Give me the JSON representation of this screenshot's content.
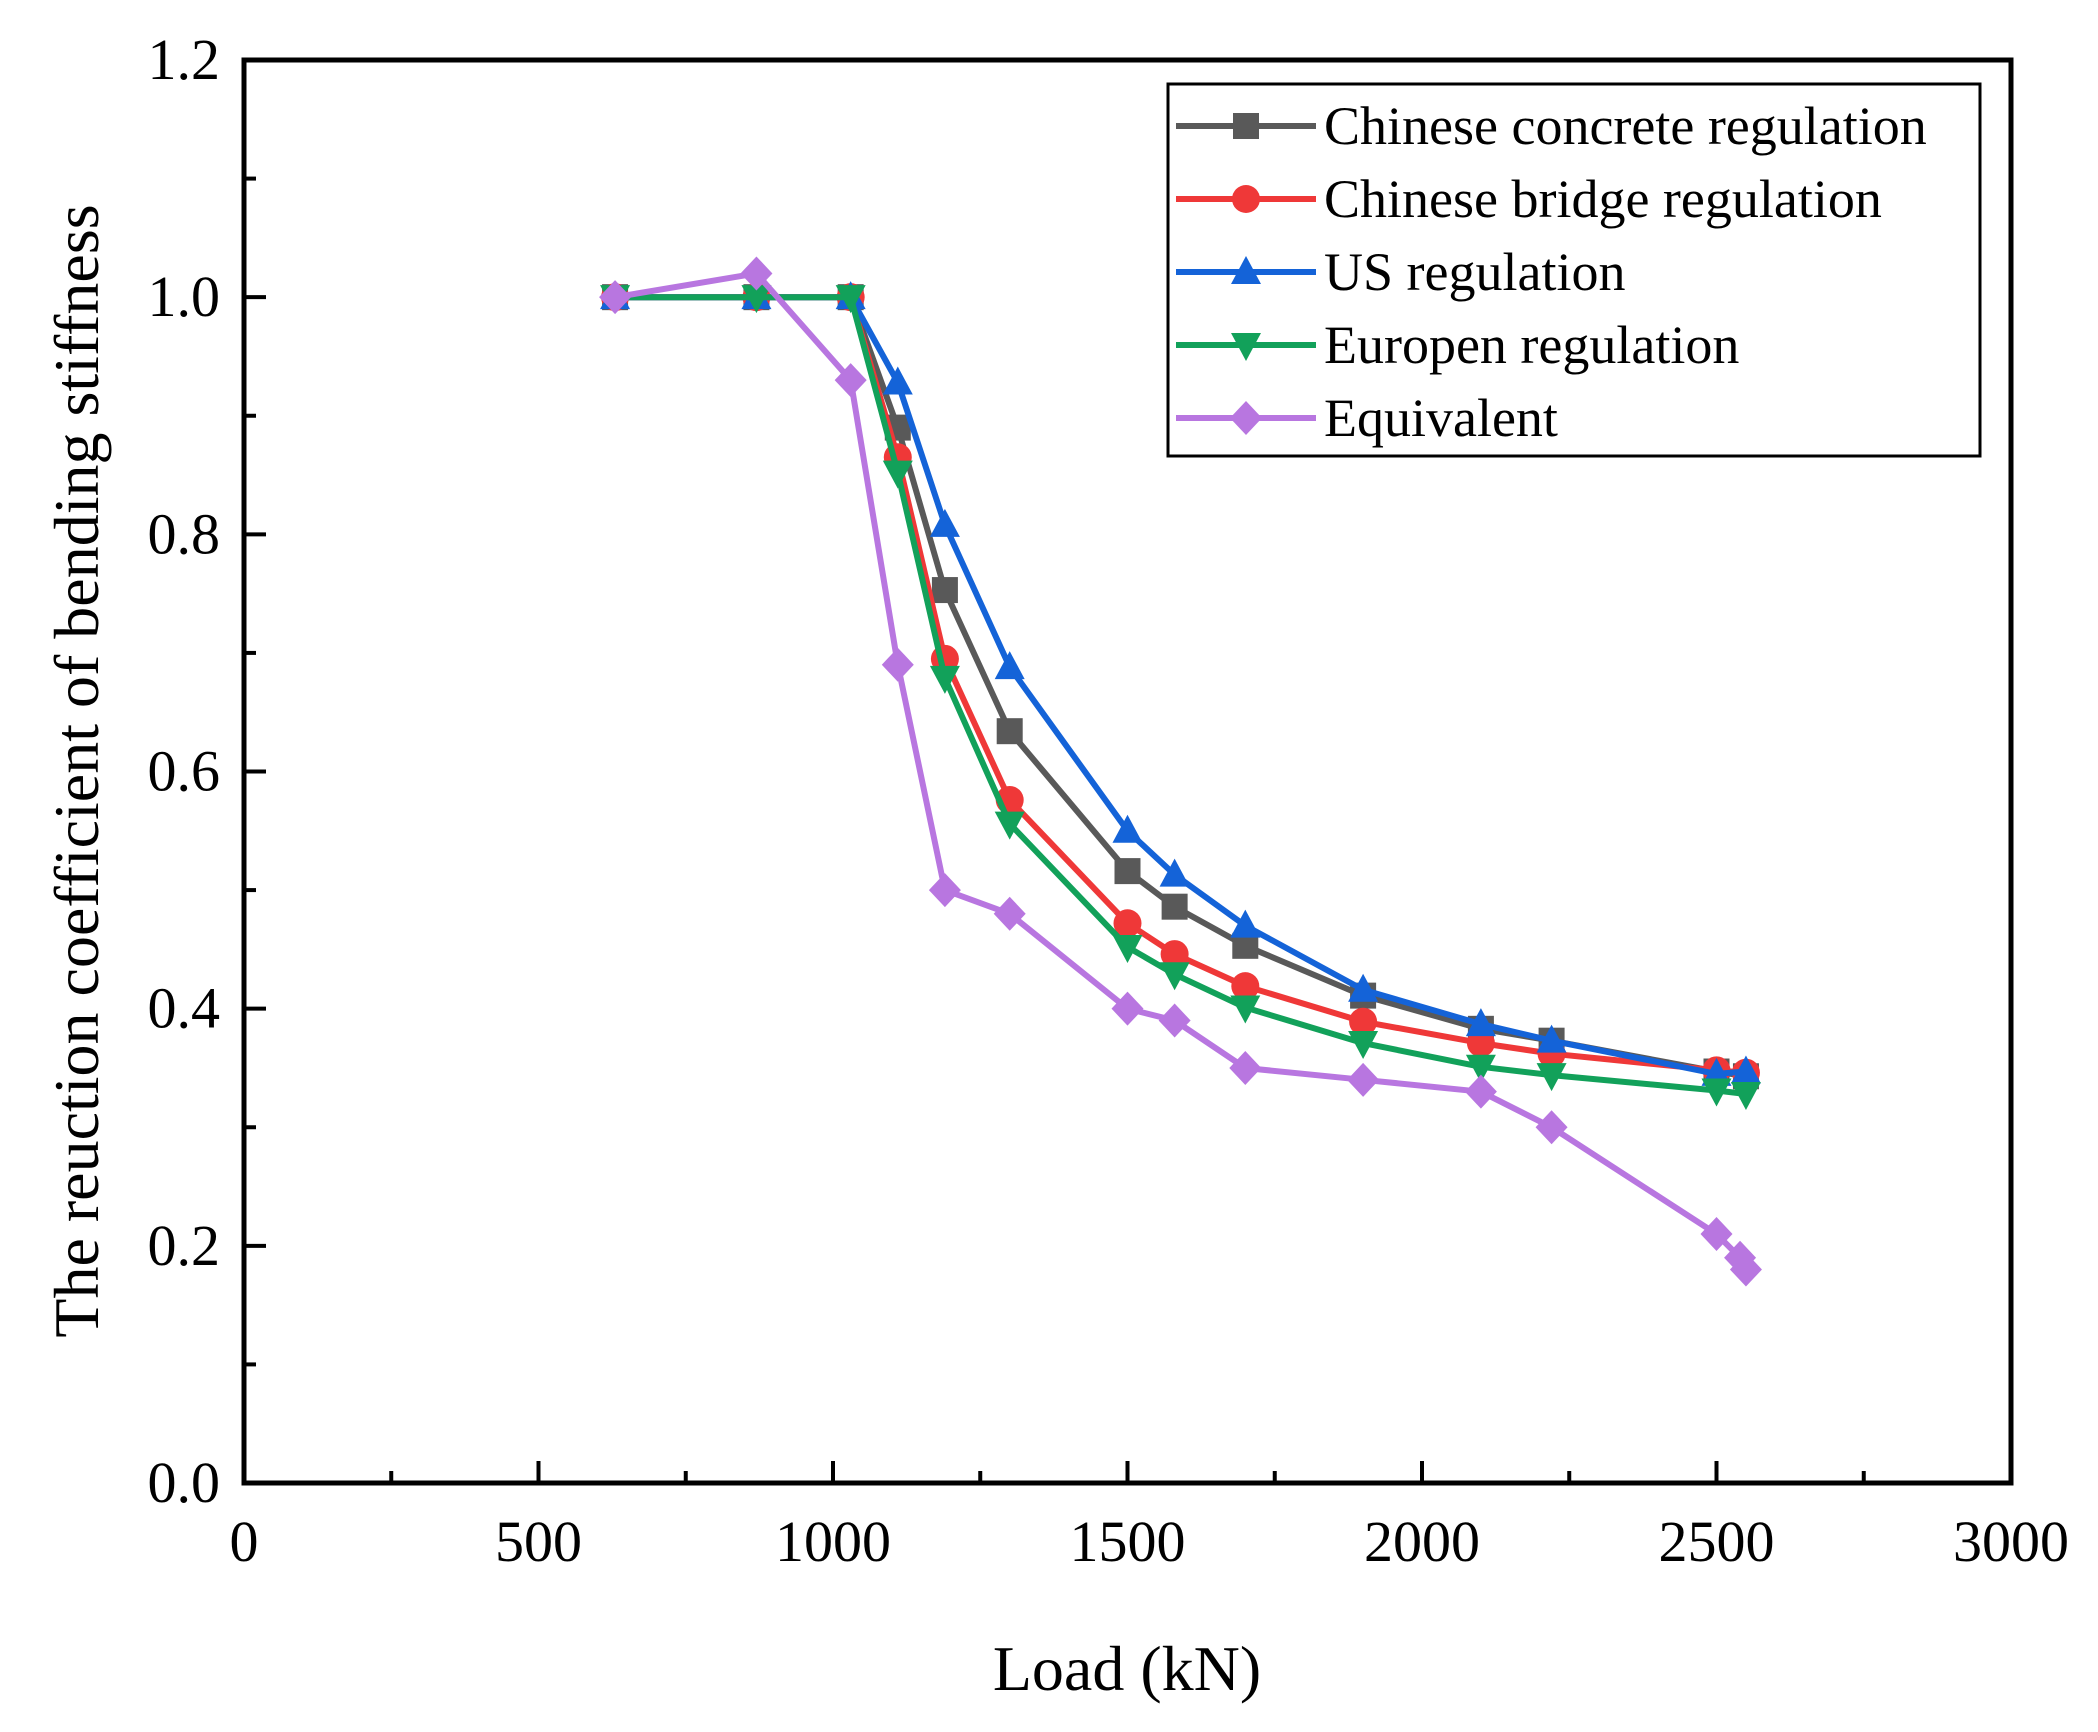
{
  "chart_data": {
    "type": "line",
    "title": "",
    "xlabel": "Load (kN)",
    "ylabel": "The reuction coefficient of bending stiffness",
    "xlim": [
      0,
      3000
    ],
    "ylim": [
      0.0,
      1.2
    ],
    "x_ticks": [
      "0",
      "500",
      "1000",
      "1500",
      "2000",
      "2500",
      "3000"
    ],
    "y_ticks": [
      "0.0",
      "0.2",
      "0.4",
      "0.6",
      "0.8",
      "1.0",
      "1.2"
    ],
    "grid": false,
    "legend_position": "top-right",
    "series": [
      {
        "name": "Chinese concrete regulation",
        "color": "#595959",
        "marker": "square",
        "x": [
          630,
          870,
          1030,
          1110,
          1190,
          1300,
          1500,
          1580,
          1700,
          1900,
          2100,
          2220,
          2500,
          2550
        ],
        "y": [
          1.0,
          1.0,
          1.0,
          0.89,
          0.753,
          0.634,
          0.516,
          0.486,
          0.453,
          0.411,
          0.383,
          0.373,
          0.347,
          0.343
        ]
      },
      {
        "name": "Chinese bridge regulation",
        "color": "#ef3838",
        "marker": "circle",
        "x": [
          630,
          870,
          1030,
          1110,
          1190,
          1300,
          1500,
          1580,
          1700,
          1900,
          2100,
          2220,
          2500,
          2550
        ],
        "y": [
          1.0,
          1.0,
          1.0,
          0.865,
          0.695,
          0.576,
          0.472,
          0.446,
          0.419,
          0.389,
          0.371,
          0.362,
          0.348,
          0.346
        ]
      },
      {
        "name": "US regulation",
        "color": "#1463d8",
        "marker": "triangle-up",
        "x": [
          630,
          870,
          1030,
          1110,
          1190,
          1300,
          1500,
          1580,
          1700,
          1900,
          2100,
          2220,
          2500,
          2550
        ],
        "y": [
          1.0,
          1.0,
          1.0,
          0.928,
          0.808,
          0.688,
          0.55,
          0.513,
          0.47,
          0.416,
          0.387,
          0.373,
          0.345,
          0.347
        ]
      },
      {
        "name": "Europen regulation",
        "color": "#12a15a",
        "marker": "triangle-down",
        "x": [
          630,
          870,
          1030,
          1110,
          1190,
          1300,
          1500,
          1580,
          1700,
          1900,
          2100,
          2220,
          2500,
          2550
        ],
        "y": [
          1.0,
          1.0,
          1.0,
          0.852,
          0.679,
          0.556,
          0.452,
          0.429,
          0.401,
          0.371,
          0.351,
          0.344,
          0.331,
          0.328
        ]
      },
      {
        "name": "Equivalent",
        "color": "#b876e0",
        "marker": "diamond",
        "x": [
          630,
          870,
          1030,
          1110,
          1190,
          1300,
          1500,
          1580,
          1700,
          1900,
          2100,
          2220,
          2500,
          2540,
          2550
        ],
        "y": [
          1.0,
          1.02,
          0.93,
          0.69,
          0.5,
          0.48,
          0.4,
          0.39,
          0.35,
          0.34,
          0.33,
          0.3,
          0.21,
          0.19,
          0.18
        ]
      }
    ]
  }
}
